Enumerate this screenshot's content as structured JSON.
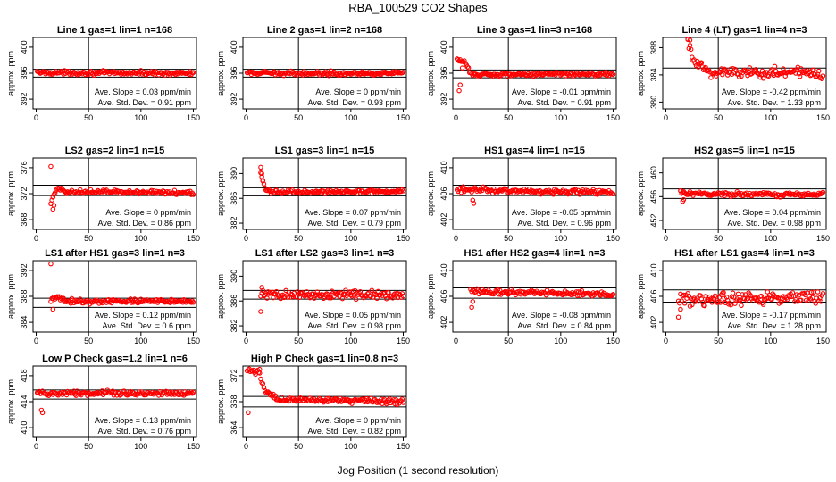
{
  "figure": {
    "title": "RBA_100529  CO2 Shapes",
    "xlabel": "Jog Position (1 second resolution)"
  },
  "chart_data": [
    {
      "type": "scatter",
      "title": "Line 1 gas=1 lin=1 n=168",
      "ylabel": "approx. ppm",
      "xlim": [
        -3,
        153
      ],
      "ylim": [
        390.5,
        401.5
      ],
      "xticks": [
        0,
        50,
        100,
        150
      ],
      "yticks": [
        392,
        396,
        400
      ],
      "vline": 50,
      "hlines": [
        395.4,
        396.6
      ],
      "shape": [
        {
          "x": 1,
          "y": 396.1
        },
        {
          "x": 150,
          "y": 396.0
        }
      ],
      "noise": 0.25,
      "spikes": [],
      "annotation": {
        "slope": "Ave. Slope = 0.03  ppm/min",
        "sd": "Ave. Std. Dev. = 0.91  ppm"
      }
    },
    {
      "type": "scatter",
      "title": "Line 2 gas=1 lin=2 n=168",
      "ylabel": "approx. ppm",
      "xlim": [
        -3,
        153
      ],
      "ylim": [
        390.5,
        401.5
      ],
      "xticks": [
        0,
        50,
        100,
        150
      ],
      "yticks": [
        392,
        396,
        400
      ],
      "vline": 50,
      "hlines": [
        395.4,
        396.6
      ],
      "shape": [
        {
          "x": 1,
          "y": 396.0
        },
        {
          "x": 150,
          "y": 396.0
        }
      ],
      "noise": 0.25,
      "spikes": [],
      "annotation": {
        "slope": "Ave. Slope = 0  ppm/min",
        "sd": "Ave. Std. Dev. = 0.93  ppm"
      }
    },
    {
      "type": "scatter",
      "title": "Line 3 gas=1 lin=3 n=168",
      "ylabel": "approx. ppm",
      "xlim": [
        -3,
        153
      ],
      "ylim": [
        390.5,
        401.5
      ],
      "xticks": [
        0,
        50,
        100,
        150
      ],
      "yticks": [
        392,
        396,
        400
      ],
      "vline": 50,
      "hlines": [
        395.3,
        396.5
      ],
      "shape": [
        {
          "x": 1,
          "y": 398.0
        },
        {
          "x": 8,
          "y": 397.8
        },
        {
          "x": 12,
          "y": 396.5
        },
        {
          "x": 16,
          "y": 395.8
        },
        {
          "x": 150,
          "y": 395.9
        }
      ],
      "noise": 0.25,
      "spikes": [
        {
          "x": 3,
          "y": 393.3
        },
        {
          "x": 4,
          "y": 394.2
        },
        {
          "x": 6,
          "y": 396.8
        }
      ],
      "annotation": {
        "slope": "Ave. Slope = -0.01  ppm/min",
        "sd": "Ave. Std. Dev. = 0.91  ppm"
      }
    },
    {
      "type": "scatter",
      "title": "Line 4 (LT) gas=1 lin=4 n=3",
      "ylabel": "approx. ppm",
      "xlim": [
        -3,
        153
      ],
      "ylim": [
        379,
        389.5
      ],
      "xticks": [
        0,
        50,
        100,
        150
      ],
      "yticks": [
        380,
        384,
        388
      ],
      "vline": 50,
      "hlines": [
        383.4,
        385.0
      ],
      "shape": [
        {
          "x": 21,
          "y": 389
        },
        {
          "x": 26,
          "y": 386
        },
        {
          "x": 40,
          "y": 384.5
        },
        {
          "x": 150,
          "y": 384.2
        }
      ],
      "noise": 0.75,
      "spikes": [
        {
          "x": 21,
          "y": 389.2
        },
        {
          "x": 23,
          "y": 389.1
        }
      ],
      "annotation": {
        "slope": "Ave. Slope = -0.42  ppm/min",
        "sd": "Ave. Std. Dev. = 1.33  ppm"
      }
    },
    {
      "type": "scatter",
      "title": "LS2 gas=2 lin=1 n=15",
      "ylabel": "approx. ppm",
      "xlim": [
        -3,
        153
      ],
      "ylim": [
        366.5,
        377.5
      ],
      "xticks": [
        0,
        50,
        100,
        150
      ],
      "yticks": [
        368,
        372,
        376
      ],
      "vline": 50,
      "hlines": [
        371.7,
        373.3
      ],
      "shape": [
        {
          "x": 14,
          "y": 370.5
        },
        {
          "x": 20,
          "y": 372.8
        },
        {
          "x": 30,
          "y": 372.3
        },
        {
          "x": 150,
          "y": 372.2
        }
      ],
      "noise": 0.3,
      "spikes": [
        {
          "x": 14,
          "y": 376.2
        },
        {
          "x": 16,
          "y": 369.6
        },
        {
          "x": 17,
          "y": 370.2
        }
      ],
      "annotation": {
        "slope": "Ave. Slope = 0  ppm/min",
        "sd": "Ave. Std. Dev. = 0.86  ppm"
      }
    },
    {
      "type": "scatter",
      "title": "LS1 gas=3 lin=1 n=15",
      "ylabel": "approx. ppm",
      "xlim": [
        -3,
        153
      ],
      "ylim": [
        381,
        392.5
      ],
      "xticks": [
        0,
        50,
        100,
        150
      ],
      "yticks": [
        382,
        386,
        390
      ],
      "vline": 50,
      "hlines": [
        386.4,
        387.7
      ],
      "shape": [
        {
          "x": 14,
          "y": 390
        },
        {
          "x": 18,
          "y": 387.5
        },
        {
          "x": 25,
          "y": 387.0
        },
        {
          "x": 150,
          "y": 387.1
        }
      ],
      "noise": 0.25,
      "spikes": [
        {
          "x": 14,
          "y": 391.0
        },
        {
          "x": 15,
          "y": 390.0
        },
        {
          "x": 16,
          "y": 388.8
        }
      ],
      "annotation": {
        "slope": "Ave. Slope = 0.07  ppm/min",
        "sd": "Ave. Std. Dev. = 0.79  ppm"
      }
    },
    {
      "type": "scatter",
      "title": "HS1 gas=4 lin=1 n=15",
      "ylabel": "approx. ppm",
      "xlim": [
        -3,
        153
      ],
      "ylim": [
        400.5,
        411.5
      ],
      "xticks": [
        0,
        50,
        100,
        150
      ],
      "yticks": [
        402,
        406,
        410
      ],
      "vline": 50,
      "hlines": [
        405.7,
        407.3
      ],
      "shape": [
        {
          "x": 1,
          "y": 406.6
        },
        {
          "x": 150,
          "y": 406.2
        }
      ],
      "noise": 0.35,
      "spikes": [
        {
          "x": 16,
          "y": 405.0
        },
        {
          "x": 17,
          "y": 404.5
        }
      ],
      "annotation": {
        "slope": "Ave. Slope = -0.05  ppm/min",
        "sd": "Ave. Std. Dev. = 0.96  ppm"
      }
    },
    {
      "type": "scatter",
      "title": "HS2 gas=5 lin=1 n=15",
      "ylabel": "approx. ppm",
      "xlim": [
        -3,
        153
      ],
      "ylim": [
        450.5,
        462.5
      ],
      "xticks": [
        0,
        50,
        100,
        150
      ],
      "yticks": [
        452,
        456,
        460
      ],
      "vline": 50,
      "hlines": [
        455.7,
        457.3
      ],
      "shape": [
        {
          "x": 14,
          "y": 456.8
        },
        {
          "x": 20,
          "y": 456.4
        },
        {
          "x": 150,
          "y": 456.4
        }
      ],
      "noise": 0.3,
      "spikes": [
        {
          "x": 14,
          "y": 457.0
        },
        {
          "x": 16,
          "y": 455.2
        },
        {
          "x": 17,
          "y": 455.5
        }
      ],
      "annotation": {
        "slope": "Ave. Slope = 0.04  ppm/min",
        "sd": "Ave. Std. Dev. = 0.98  ppm"
      }
    },
    {
      "type": "scatter",
      "title": "LS1 after HS1 gas=3 lin=1 n=3",
      "ylabel": "approx. ppm",
      "xlim": [
        -3,
        153
      ],
      "ylim": [
        382.5,
        393.5
      ],
      "xticks": [
        0,
        50,
        100,
        150
      ],
      "yticks": [
        384,
        388,
        392
      ],
      "vline": 50,
      "hlines": [
        386.3,
        387.7
      ],
      "shape": [
        {
          "x": 14,
          "y": 387.5
        },
        {
          "x": 20,
          "y": 387.8
        },
        {
          "x": 30,
          "y": 387.2
        },
        {
          "x": 150,
          "y": 387.3
        }
      ],
      "noise": 0.3,
      "spikes": [
        {
          "x": 14,
          "y": 393.0
        },
        {
          "x": 16,
          "y": 386.0
        }
      ],
      "annotation": {
        "slope": "Ave. Slope = 0.12  ppm/min",
        "sd": "Ave. Std. Dev. = 0.6  ppm"
      }
    },
    {
      "type": "scatter",
      "title": "LS1 after LS2 gas=3 lin=1 n=3",
      "ylabel": "approx. ppm",
      "xlim": [
        -3,
        153
      ],
      "ylim": [
        381,
        392.5
      ],
      "xticks": [
        0,
        50,
        100,
        150
      ],
      "yticks": [
        382,
        386,
        390
      ],
      "vline": 50,
      "hlines": [
        386.3,
        387.7
      ],
      "shape": [
        {
          "x": 14,
          "y": 387.0
        },
        {
          "x": 150,
          "y": 387.0
        }
      ],
      "noise": 0.55,
      "spikes": [
        {
          "x": 14,
          "y": 384.3
        },
        {
          "x": 15,
          "y": 388.2
        }
      ],
      "annotation": {
        "slope": "Ave. Slope = 0.05  ppm/min",
        "sd": "Ave. Std. Dev. = 0.98  ppm"
      }
    },
    {
      "type": "scatter",
      "title": "HS1 after HS2 gas=4 lin=1 n=3",
      "ylabel": "approx. ppm",
      "xlim": [
        -3,
        153
      ],
      "ylim": [
        400.5,
        411.5
      ],
      "xticks": [
        0,
        50,
        100,
        150
      ],
      "yticks": [
        402,
        406,
        410
      ],
      "vline": 50,
      "hlines": [
        405.7,
        407.3
      ],
      "shape": [
        {
          "x": 14,
          "y": 407.0
        },
        {
          "x": 30,
          "y": 406.7
        },
        {
          "x": 150,
          "y": 406.3
        }
      ],
      "noise": 0.35,
      "spikes": [
        {
          "x": 15,
          "y": 404.3
        },
        {
          "x": 16,
          "y": 405.2
        }
      ],
      "annotation": {
        "slope": "Ave. Slope = -0.08  ppm/min",
        "sd": "Ave. Std. Dev. = 0.84  ppm"
      }
    },
    {
      "type": "scatter",
      "title": "HS1 after LS1 gas=4 lin=1 n=3",
      "ylabel": "approx. ppm",
      "xlim": [
        -3,
        153
      ],
      "ylim": [
        400.5,
        411.5
      ],
      "xticks": [
        0,
        50,
        100,
        150
      ],
      "yticks": [
        402,
        406,
        410
      ],
      "vline": 50,
      "hlines": [
        405.1,
        407.0
      ],
      "shape": [
        {
          "x": 12,
          "y": 405.5
        },
        {
          "x": 150,
          "y": 405.8
        }
      ],
      "noise": 0.8,
      "spikes": [
        {
          "x": 12,
          "y": 402.8
        },
        {
          "x": 14,
          "y": 404.0
        }
      ],
      "annotation": {
        "slope": "Ave. Slope = -0.17  ppm/min",
        "sd": "Ave. Std. Dev. = 1.28  ppm"
      }
    },
    {
      "type": "scatter",
      "title": "Low P Check gas=1.2 lin=1 n=6",
      "ylabel": "approx. ppm",
      "xlim": [
        -3,
        153
      ],
      "ylim": [
        408.5,
        419.5
      ],
      "xticks": [
        0,
        50,
        100,
        150
      ],
      "yticks": [
        410,
        414,
        418
      ],
      "vline": 50,
      "hlines": [
        414.4,
        415.8
      ],
      "shape": [
        {
          "x": 1,
          "y": 415.3
        },
        {
          "x": 150,
          "y": 415.3
        }
      ],
      "noise": 0.3,
      "spikes": [
        {
          "x": 5,
          "y": 412.7
        },
        {
          "x": 6,
          "y": 412.3
        }
      ],
      "annotation": {
        "slope": "Ave. Slope = 0.13  ppm/min",
        "sd": "Ave. Std. Dev. = 0.76  ppm"
      }
    },
    {
      "type": "scatter",
      "title": "High P Check gas=1 lin=0.8 n=3",
      "ylabel": "approx. ppm",
      "xlim": [
        -3,
        153
      ],
      "ylim": [
        362.5,
        373.5
      ],
      "xticks": [
        0,
        50,
        100,
        150
      ],
      "yticks": [
        364,
        368,
        372
      ],
      "vline": 50,
      "hlines": [
        367.2,
        368.8
      ],
      "shape": [
        {
          "x": 1,
          "y": 372.8
        },
        {
          "x": 12,
          "y": 372.5
        },
        {
          "x": 18,
          "y": 369.6
        },
        {
          "x": 30,
          "y": 368.4
        },
        {
          "x": 150,
          "y": 368.0
        }
      ],
      "noise": 0.35,
      "spikes": [
        {
          "x": 2,
          "y": 366.3
        },
        {
          "x": 13,
          "y": 373.0
        }
      ],
      "annotation": {
        "slope": "Ave. Slope = 0  ppm/min",
        "sd": "Ave. Std. Dev. = 0.82  ppm"
      }
    }
  ]
}
